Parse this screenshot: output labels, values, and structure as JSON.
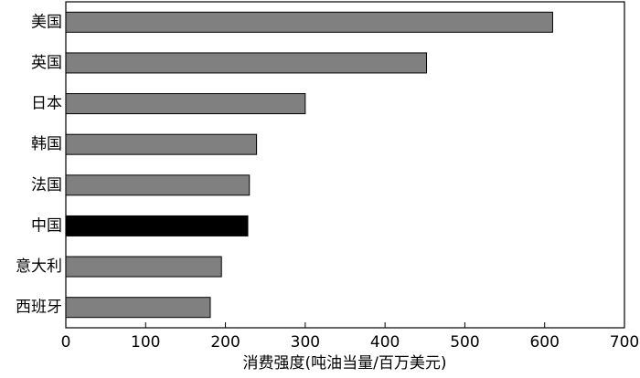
{
  "chart_data": {
    "type": "bar",
    "orientation": "horizontal",
    "x_label": "消费强度(吨油当量/百万美元)",
    "categories": [
      "美国",
      "英国",
      "日本",
      "韩国",
      "法国",
      "中国",
      "意大利",
      "西班牙"
    ],
    "values": [
      610,
      452,
      300,
      239,
      230,
      228,
      195,
      181
    ],
    "colors": [
      "#808080",
      "#808080",
      "#808080",
      "#808080",
      "#808080",
      "#000000",
      "#808080",
      "#808080"
    ],
    "xlim": [
      0,
      700
    ],
    "xticks": [
      0,
      100,
      200,
      300,
      400,
      500,
      600,
      700
    ],
    "grid": false
  }
}
